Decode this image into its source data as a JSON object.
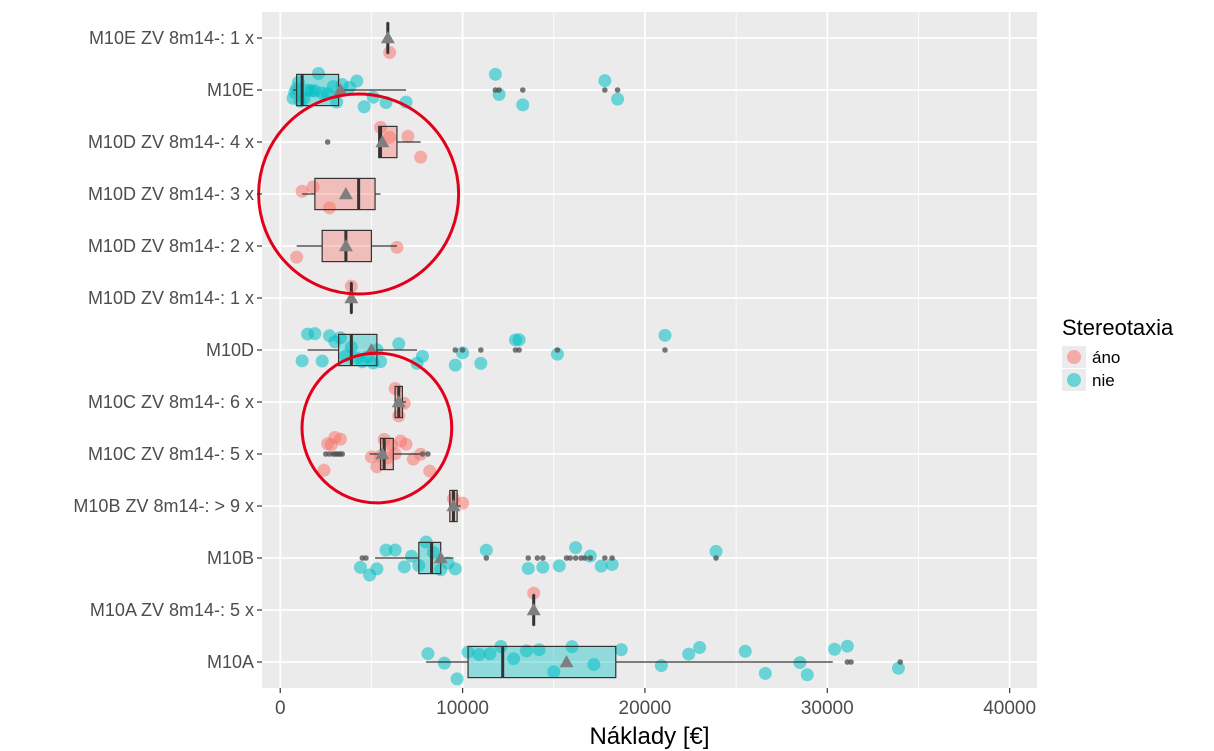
{
  "chart_data": {
    "type": "boxplot",
    "xlabel": "Náklady [€]",
    "ylabel": "",
    "xlim": [
      -1000,
      41500
    ],
    "xticks": [
      0,
      10000,
      20000,
      30000,
      40000
    ],
    "xtick_labels": [
      "0",
      "10000",
      "20000",
      "30000",
      "40000"
    ],
    "grid": true,
    "legend": {
      "title": "Stereotaxia",
      "position": "right",
      "entries": [
        {
          "label": "áno",
          "color": "#F8766D"
        },
        {
          "label": "nie",
          "color": "#00BFC4"
        }
      ]
    },
    "categories": [
      "M10E ZV 8m14-: 1 x",
      "M10E",
      "M10D ZV 8m14-: 4 x",
      "M10D ZV 8m14-: 3 x",
      "M10D ZV 8m14-: 2 x",
      "M10D ZV 8m14-: 1 x",
      "M10D",
      "M10C ZV 8m14-: 6 x",
      "M10C ZV 8m14-: 5 x",
      "M10B ZV 8m14-: > 9 x",
      "M10B",
      "M10A ZV 8m14-: 5 x",
      "M10A"
    ],
    "boxes": [
      {
        "category": "M10E ZV 8m14-: 1 x",
        "min": 5900,
        "q1": 5900,
        "median": 5900,
        "q3": 5900,
        "max": 5900,
        "mean": 5900,
        "fill": "#F8766D"
      },
      {
        "category": "M10E",
        "min": 700,
        "q1": 900,
        "median": 1200,
        "q3": 3200,
        "max": 6900,
        "mean": 3300,
        "fill": "#00BFC4"
      },
      {
        "category": "M10D ZV 8m14-: 4 x",
        "min": 5400,
        "q1": 5400,
        "median": 5500,
        "q3": 6400,
        "max": 7700,
        "mean": 5600,
        "fill": "#F8766D"
      },
      {
        "category": "M10D ZV 8m14-: 3 x",
        "min": 1200,
        "q1": 1900,
        "median": 4300,
        "q3": 5200,
        "max": 5500,
        "mean": 3600,
        "fill": "#F8766D"
      },
      {
        "category": "M10D ZV 8m14-: 2 x",
        "min": 900,
        "q1": 2300,
        "median": 3600,
        "q3": 5000,
        "max": 6400,
        "mean": 3600,
        "fill": "#F8766D"
      },
      {
        "category": "M10D ZV 8m14-: 1 x",
        "min": 3900,
        "q1": 3900,
        "median": 3900,
        "q3": 3900,
        "max": 3900,
        "mean": 3900,
        "fill": "#F8766D"
      },
      {
        "category": "M10D",
        "min": 1500,
        "q1": 3200,
        "median": 3900,
        "q3": 5300,
        "max": 7500,
        "mean": 5000,
        "fill": "#00BFC4"
      },
      {
        "category": "M10C ZV 8m14-: 6 x",
        "min": 6300,
        "q1": 6300,
        "median": 6500,
        "q3": 6700,
        "max": 6900,
        "mean": 6500,
        "fill": "#F8766D"
      },
      {
        "category": "M10C ZV 8m14-: 5 x",
        "min": 4900,
        "q1": 5500,
        "median": 5700,
        "q3": 6200,
        "max": 7700,
        "mean": 5600,
        "fill": "#F8766D"
      },
      {
        "category": "M10B ZV 8m14-: > 9 x",
        "min": 9300,
        "q1": 9300,
        "median": 9500,
        "q3": 9700,
        "max": 9900,
        "mean": 9500,
        "fill": "#F8766D"
      },
      {
        "category": "M10B",
        "min": 5200,
        "q1": 7600,
        "median": 8300,
        "q3": 8800,
        "max": 9500,
        "mean": 8800,
        "fill": "#00BFC4"
      },
      {
        "category": "M10A ZV 8m14-: 5 x",
        "min": 13900,
        "q1": 13900,
        "median": 13900,
        "q3": 13900,
        "max": 13900,
        "mean": 13900,
        "fill": "#F8766D"
      },
      {
        "category": "M10A",
        "min": 8000,
        "q1": 10300,
        "median": 12200,
        "q3": 18400,
        "max": 30300,
        "mean": 15700,
        "fill": "#00BFC4"
      }
    ],
    "outliers": [
      {
        "category": "M10E",
        "x": [
          11800,
          12000,
          13300,
          17800,
          18500
        ]
      },
      {
        "category": "M10D ZV 8m14-: 4 x",
        "x": [
          2600
        ]
      },
      {
        "category": "M10D",
        "x": [
          9600,
          10000,
          11000,
          12900,
          13100,
          15200,
          21100
        ]
      },
      {
        "category": "M10C ZV 8m14-: 5 x",
        "x": [
          2500,
          2700,
          2900,
          3000,
          3100,
          3200,
          3300,
          3400,
          7800,
          8100
        ]
      },
      {
        "category": "M10B",
        "x": [
          4500,
          4700,
          11300,
          13600,
          14100,
          14400,
          15700,
          15900,
          16200,
          16500,
          16700,
          17000,
          17800,
          18200,
          23900
        ]
      },
      {
        "category": "M10A",
        "x": [
          31100,
          31300,
          34000
        ]
      }
    ],
    "points": [
      {
        "category": "M10E ZV 8m14-: 1 x",
        "group": "áno",
        "x": [
          6000
        ]
      },
      {
        "category": "M10E",
        "group": "nie",
        "x": [
          700,
          800,
          900,
          1000,
          1100,
          1300,
          1500,
          1700,
          1900,
          2100,
          2300,
          2600,
          2900,
          3100,
          3400,
          3800,
          4200,
          4600,
          5100,
          5800,
          6900,
          11800,
          12000,
          13300,
          17800,
          18500
        ]
      },
      {
        "category": "M10D ZV 8m14-: 4 x",
        "group": "áno",
        "x": [
          5500,
          6000,
          7000,
          7700
        ]
      },
      {
        "category": "M10D ZV 8m14-: 3 x",
        "group": "áno",
        "x": [
          1200,
          1800,
          2700
        ]
      },
      {
        "category": "M10D ZV 8m14-: 2 x",
        "group": "áno",
        "x": [
          900,
          6400
        ]
      },
      {
        "category": "M10D ZV 8m14-: 1 x",
        "group": "áno",
        "x": [
          3900
        ]
      },
      {
        "category": "M10D",
        "group": "nie",
        "x": [
          1200,
          1500,
          1900,
          2300,
          2700,
          3000,
          3300,
          3600,
          3900,
          4200,
          4500,
          4800,
          5100,
          5300,
          5500,
          6500,
          7500,
          7800,
          9600,
          10000,
          11000,
          12900,
          13100,
          15200,
          21100
        ]
      },
      {
        "category": "M10C ZV 8m14-: 6 x",
        "group": "áno",
        "x": [
          6300,
          6500,
          6800
        ]
      },
      {
        "category": "M10C ZV 8m14-: 5 x",
        "group": "áno",
        "x": [
          2400,
          2600,
          2800,
          3000,
          3300,
          5000,
          5300,
          5500,
          5700,
          5900,
          6100,
          6300,
          6600,
          6900,
          7300,
          7700,
          8200
        ]
      },
      {
        "category": "M10B ZV 8m14-: > 9 x",
        "group": "áno",
        "x": [
          9500,
          10000
        ]
      },
      {
        "category": "M10B",
        "group": "nie",
        "x": [
          4400,
          4900,
          5300,
          5800,
          6300,
          6800,
          7200,
          7600,
          8000,
          8400,
          8800,
          9200,
          9600,
          11300,
          13600,
          14400,
          15300,
          16200,
          17000,
          17600,
          18200,
          23900
        ]
      },
      {
        "category": "M10A ZV 8m14-: 5 x",
        "group": "áno",
        "x": [
          13900
        ]
      },
      {
        "category": "M10A",
        "group": "nie",
        "x": [
          8100,
          9000,
          9700,
          10300,
          10900,
          11500,
          12100,
          12800,
          13500,
          14200,
          15000,
          16000,
          17200,
          18700,
          20900,
          22400,
          23000,
          25500,
          26600,
          28500,
          28900,
          30400,
          31100,
          33900
        ]
      }
    ],
    "annotations": [
      {
        "type": "circle",
        "color": "#E3001B",
        "around": [
          "M10D ZV 8m14-: 4 x",
          "M10D ZV 8m14-: 3 x",
          "M10D ZV 8m14-: 2 x"
        ]
      },
      {
        "type": "circle",
        "color": "#E3001B",
        "around": [
          "M10C ZV 8m14-: 6 x",
          "M10C ZV 8m14-: 5 x"
        ]
      }
    ],
    "colors": {
      "panel": "#EBEBEB",
      "grid_major": "#FFFFFF",
      "highlight": "#E3001B",
      "mean_marker": "#7F7F7F"
    }
  }
}
